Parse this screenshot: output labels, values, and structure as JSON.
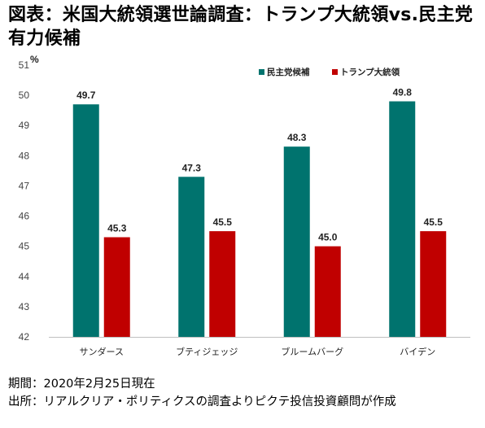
{
  "title": "図表：米国大統領選世論調査：トランプ大統領vs.民主党有力候補",
  "footnote": {
    "period": "期間：2020年2月25日現在",
    "source": "出所：リアルクリア・ポリティクスの調査よりピクテ投信投資顧問が作成"
  },
  "chart_data": {
    "type": "bar",
    "categories": [
      "サンダース",
      "ブティジェッジ",
      "ブルームバーグ",
      "バイデン"
    ],
    "series": [
      {
        "name": "民主党候補",
        "color": "#00736E",
        "values": [
          49.7,
          47.3,
          48.3,
          49.8
        ],
        "labels": [
          "49.7",
          "47.3",
          "48.3",
          "49.8"
        ]
      },
      {
        "name": "トランプ大統領",
        "color": "#C00000",
        "values": [
          45.3,
          45.5,
          45.0,
          45.5
        ],
        "labels": [
          "45.3",
          "45.5",
          "45.0",
          "45.5"
        ]
      }
    ],
    "ylim": [
      42,
      51
    ],
    "yticks": [
      42,
      43,
      44,
      45,
      46,
      47,
      48,
      49,
      50,
      51
    ],
    "yunit": "%",
    "legend": "top-right",
    "grid": false
  }
}
